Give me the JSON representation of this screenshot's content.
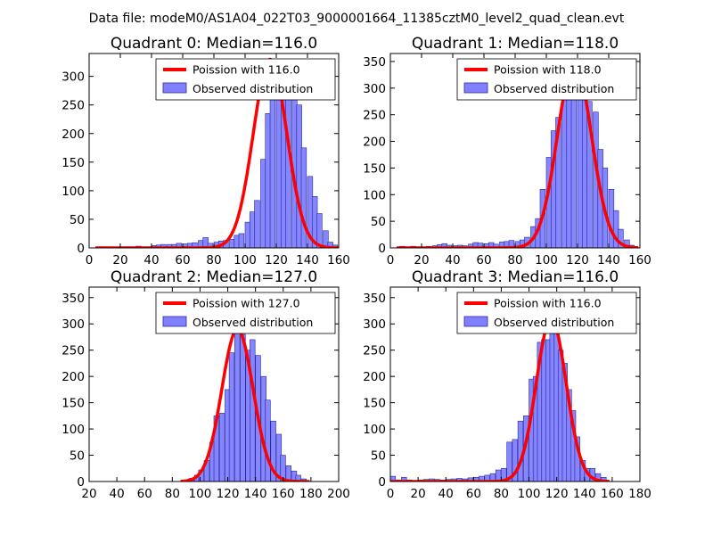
{
  "suptitle": "Data file: modeM0/AS1A04_022T03_9000001664_11385cztM0_level2_quad_clean.evt",
  "colors": {
    "bar_fill": "#8080ff",
    "bar_edge": "#2a2aa0",
    "curve": "#ff0000"
  },
  "chart_data": [
    {
      "type": "bar",
      "title": "Quadrant 0: Median=116.0",
      "median": 116.0,
      "xlim": [
        0,
        160
      ],
      "ylim": [
        0,
        340
      ],
      "xticks": [
        0,
        20,
        40,
        60,
        80,
        100,
        120,
        140,
        160
      ],
      "yticks": [
        0,
        50,
        100,
        150,
        200,
        250,
        300
      ],
      "legend_curve": "Poission with 116.0",
      "legend_bars": "Observed distribution",
      "bin_width": 3.33,
      "bins": [
        [
          6,
          2
        ],
        [
          10,
          1
        ],
        [
          13,
          1
        ],
        [
          16,
          1
        ],
        [
          20,
          1
        ],
        [
          23,
          2
        ],
        [
          27,
          1
        ],
        [
          30,
          3
        ],
        [
          33,
          1
        ],
        [
          36,
          1
        ],
        [
          40,
          4
        ],
        [
          43,
          5
        ],
        [
          46,
          6
        ],
        [
          50,
          6
        ],
        [
          53,
          6
        ],
        [
          56,
          8
        ],
        [
          60,
          7
        ],
        [
          63,
          8
        ],
        [
          66,
          9
        ],
        [
          70,
          13
        ],
        [
          73,
          18
        ],
        [
          76,
          8
        ],
        [
          80,
          10
        ],
        [
          83,
          12
        ],
        [
          86,
          13
        ],
        [
          90,
          15
        ],
        [
          93,
          22
        ],
        [
          96,
          25
        ],
        [
          100,
          45
        ],
        [
          103,
          63
        ],
        [
          106,
          83
        ],
        [
          110,
          155
        ],
        [
          113,
          235
        ],
        [
          116,
          280
        ],
        [
          120,
          330
        ],
        [
          123,
          330
        ],
        [
          126,
          300
        ],
        [
          130,
          270
        ],
        [
          133,
          250
        ],
        [
          136,
          175
        ],
        [
          140,
          125
        ],
        [
          143,
          90
        ],
        [
          146,
          60
        ],
        [
          150,
          30
        ],
        [
          153,
          10
        ],
        [
          156,
          5
        ]
      ]
    },
    {
      "type": "bar",
      "title": "Quadrant 1: Median=118.0",
      "median": 118.0,
      "xlim": [
        0,
        160
      ],
      "ylim": [
        0,
        365
      ],
      "xticks": [
        0,
        20,
        40,
        60,
        80,
        100,
        120,
        140,
        160
      ],
      "yticks": [
        0,
        50,
        100,
        150,
        200,
        250,
        300,
        350
      ],
      "legend_curve": "Poission with 118.0",
      "legend_bars": "Observed distribution",
      "bin_width": 3.33,
      "bins": [
        [
          6,
          3
        ],
        [
          10,
          2
        ],
        [
          13,
          3
        ],
        [
          16,
          2
        ],
        [
          20,
          2
        ],
        [
          23,
          3
        ],
        [
          27,
          4
        ],
        [
          30,
          6
        ],
        [
          33,
          8
        ],
        [
          36,
          5
        ],
        [
          40,
          4
        ],
        [
          43,
          5
        ],
        [
          46,
          4
        ],
        [
          50,
          7
        ],
        [
          53,
          10
        ],
        [
          56,
          9
        ],
        [
          60,
          8
        ],
        [
          63,
          10
        ],
        [
          66,
          7
        ],
        [
          70,
          11
        ],
        [
          73,
          12
        ],
        [
          76,
          14
        ],
        [
          80,
          12
        ],
        [
          83,
          15
        ],
        [
          86,
          20
        ],
        [
          90,
          40
        ],
        [
          93,
          55
        ],
        [
          96,
          110
        ],
        [
          100,
          170
        ],
        [
          103,
          220
        ],
        [
          106,
          245
        ],
        [
          110,
          285
        ],
        [
          113,
          320
        ],
        [
          116,
          350
        ],
        [
          120,
          330
        ],
        [
          123,
          310
        ],
        [
          126,
          275
        ],
        [
          130,
          255
        ],
        [
          133,
          185
        ],
        [
          136,
          150
        ],
        [
          140,
          110
        ],
        [
          143,
          70
        ],
        [
          146,
          35
        ],
        [
          150,
          15
        ],
        [
          153,
          5
        ]
      ]
    },
    {
      "type": "bar",
      "title": "Quadrant 2: Median=127.0",
      "median": 127.0,
      "xlim": [
        20,
        200
      ],
      "ylim": [
        0,
        370
      ],
      "xticks": [
        20,
        40,
        60,
        80,
        100,
        120,
        140,
        160,
        180,
        200
      ],
      "yticks": [
        0,
        50,
        100,
        150,
        200,
        250,
        300,
        350
      ],
      "legend_curve": "Poission with 127.0",
      "legend_bars": "Observed distribution",
      "bin_width": 3.7,
      "bins": [
        [
          88,
          2
        ],
        [
          92,
          6
        ],
        [
          96,
          12
        ],
        [
          99,
          22
        ],
        [
          103,
          40
        ],
        [
          107,
          75
        ],
        [
          110,
          125
        ],
        [
          114,
          130
        ],
        [
          118,
          175
        ],
        [
          121,
          245
        ],
        [
          125,
          290
        ],
        [
          129,
          280
        ],
        [
          133,
          250
        ],
        [
          136,
          270
        ],
        [
          140,
          240
        ],
        [
          144,
          200
        ],
        [
          147,
          155
        ],
        [
          151,
          115
        ],
        [
          155,
          90
        ],
        [
          158,
          50
        ],
        [
          162,
          30
        ],
        [
          166,
          20
        ],
        [
          169,
          12
        ],
        [
          173,
          5
        ]
      ]
    },
    {
      "type": "bar",
      "title": "Quadrant 3: Median=116.0",
      "median": 116.0,
      "xlim": [
        0,
        180
      ],
      "ylim": [
        0,
        370
      ],
      "xticks": [
        0,
        20,
        40,
        60,
        80,
        100,
        120,
        140,
        160,
        180
      ],
      "yticks": [
        0,
        50,
        100,
        150,
        200,
        250,
        300,
        350
      ],
      "legend_curve": "Poission with 116.0",
      "legend_bars": "Observed distribution",
      "bin_width": 3.7,
      "bins": [
        [
          0,
          10
        ],
        [
          4,
          3
        ],
        [
          8,
          8
        ],
        [
          12,
          3
        ],
        [
          16,
          2
        ],
        [
          20,
          3
        ],
        [
          24,
          4
        ],
        [
          28,
          5
        ],
        [
          32,
          4
        ],
        [
          36,
          3
        ],
        [
          40,
          4
        ],
        [
          44,
          5
        ],
        [
          48,
          6
        ],
        [
          52,
          5
        ],
        [
          56,
          7
        ],
        [
          60,
          8
        ],
        [
          64,
          10
        ],
        [
          68,
          12
        ],
        [
          72,
          15
        ],
        [
          76,
          22
        ],
        [
          80,
          25
        ],
        [
          84,
          75
        ],
        [
          88,
          80
        ],
        [
          92,
          115
        ],
        [
          96,
          125
        ],
        [
          100,
          195
        ],
        [
          103,
          200
        ],
        [
          106,
          265
        ],
        [
          109,
          270
        ],
        [
          112,
          270
        ],
        [
          115,
          290
        ],
        [
          118,
          310
        ],
        [
          121,
          250
        ],
        [
          124,
          225
        ],
        [
          127,
          175
        ],
        [
          130,
          135
        ],
        [
          133,
          85
        ],
        [
          137,
          40
        ],
        [
          140,
          25
        ],
        [
          144,
          25
        ],
        [
          148,
          15
        ],
        [
          152,
          8
        ]
      ]
    }
  ]
}
